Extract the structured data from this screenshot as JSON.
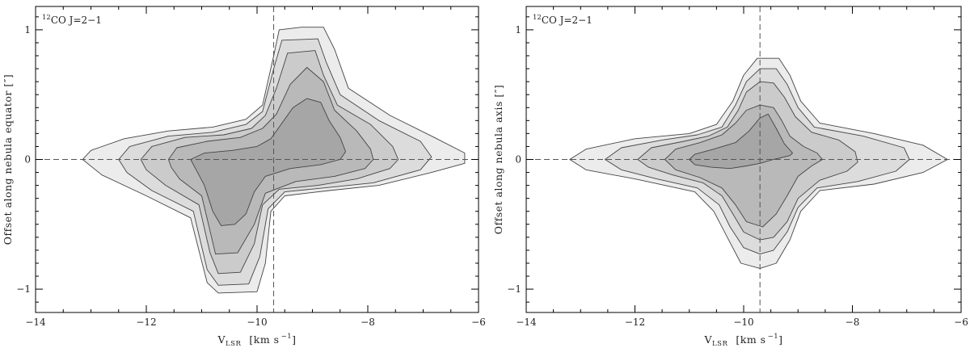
{
  "chart_data": [
    {
      "type": "contour",
      "panel_label": {
        "iso": "12",
        "text": "CO J=2−1"
      },
      "xlabel": {
        "main": "V",
        "sub": "LSR",
        "unit": "[km s",
        "exp": "−1",
        "close": "]"
      },
      "ylabel": "Offset along nebula equator [″]",
      "xlim": [
        -14,
        -6
      ],
      "ylim": [
        -1.18,
        1.18
      ],
      "xticks": [
        -14,
        -12,
        -10,
        -8,
        -6
      ],
      "yticks": [
        -1,
        0,
        1
      ],
      "xtick_labels": [
        "−14",
        "−12",
        "−10",
        "−8",
        "−6"
      ],
      "ytick_labels": [
        "−1",
        "0",
        "1"
      ],
      "ref_vline_x": -9.7,
      "ref_hline_y": 0,
      "contour_fills": [
        "#ececec",
        "#dcdcdc",
        "#cbcbcb",
        "#b9b9b9",
        "#a6a6a6"
      ],
      "contours": [
        [
          [
            -13.15,
            0.0
          ],
          [
            -13.0,
            0.07
          ],
          [
            -12.4,
            0.16
          ],
          [
            -11.6,
            0.22
          ],
          [
            -10.8,
            0.25
          ],
          [
            -10.2,
            0.31
          ],
          [
            -9.9,
            0.42
          ],
          [
            -9.7,
            0.8
          ],
          [
            -9.6,
            1.0
          ],
          [
            -9.2,
            1.02
          ],
          [
            -8.8,
            1.02
          ],
          [
            -8.6,
            0.85
          ],
          [
            -8.35,
            0.55
          ],
          [
            -7.6,
            0.34
          ],
          [
            -6.8,
            0.17
          ],
          [
            -6.25,
            0.05
          ],
          [
            -6.25,
            -0.03
          ],
          [
            -6.85,
            -0.1
          ],
          [
            -7.8,
            -0.2
          ],
          [
            -8.7,
            -0.24
          ],
          [
            -9.5,
            -0.28
          ],
          [
            -9.75,
            -0.4
          ],
          [
            -9.85,
            -0.8
          ],
          [
            -10.0,
            -1.02
          ],
          [
            -10.7,
            -1.03
          ],
          [
            -10.9,
            -0.95
          ],
          [
            -11.2,
            -0.45
          ],
          [
            -12.0,
            -0.28
          ],
          [
            -12.8,
            -0.12
          ]
        ],
        [
          [
            -12.5,
            0.0
          ],
          [
            -12.3,
            0.1
          ],
          [
            -11.6,
            0.18
          ],
          [
            -10.8,
            0.21
          ],
          [
            -10.2,
            0.27
          ],
          [
            -9.9,
            0.37
          ],
          [
            -9.7,
            0.7
          ],
          [
            -9.55,
            0.92
          ],
          [
            -8.9,
            0.93
          ],
          [
            -8.75,
            0.75
          ],
          [
            -8.5,
            0.5
          ],
          [
            -7.8,
            0.3
          ],
          [
            -7.05,
            0.14
          ],
          [
            -6.85,
            0.02
          ],
          [
            -7.05,
            -0.08
          ],
          [
            -7.9,
            -0.18
          ],
          [
            -8.8,
            -0.22
          ],
          [
            -9.5,
            -0.25
          ],
          [
            -9.8,
            -0.38
          ],
          [
            -9.95,
            -0.75
          ],
          [
            -10.15,
            -0.96
          ],
          [
            -10.7,
            -0.97
          ],
          [
            -10.9,
            -0.85
          ],
          [
            -11.15,
            -0.4
          ],
          [
            -11.9,
            -0.24
          ],
          [
            -12.35,
            -0.1
          ]
        ],
        [
          [
            -12.1,
            0.0
          ],
          [
            -11.9,
            0.1
          ],
          [
            -11.3,
            0.17
          ],
          [
            -10.6,
            0.19
          ],
          [
            -10.1,
            0.24
          ],
          [
            -9.85,
            0.34
          ],
          [
            -9.65,
            0.55
          ],
          [
            -9.45,
            0.82
          ],
          [
            -8.95,
            0.84
          ],
          [
            -8.8,
            0.65
          ],
          [
            -8.55,
            0.42
          ],
          [
            -7.95,
            0.27
          ],
          [
            -7.55,
            0.1
          ],
          [
            -7.45,
            0.0
          ],
          [
            -7.6,
            -0.07
          ],
          [
            -8.2,
            -0.15
          ],
          [
            -8.9,
            -0.2
          ],
          [
            -9.6,
            -0.23
          ],
          [
            -9.9,
            -0.35
          ],
          [
            -10.05,
            -0.65
          ],
          [
            -10.3,
            -0.87
          ],
          [
            -10.7,
            -0.88
          ],
          [
            -10.85,
            -0.72
          ],
          [
            -11.05,
            -0.35
          ],
          [
            -11.65,
            -0.2
          ],
          [
            -12.0,
            -0.08
          ]
        ],
        [
          [
            -11.6,
            0.0
          ],
          [
            -11.45,
            0.09
          ],
          [
            -10.9,
            0.14
          ],
          [
            -10.3,
            0.17
          ],
          [
            -9.9,
            0.24
          ],
          [
            -9.65,
            0.35
          ],
          [
            -9.4,
            0.58
          ],
          [
            -9.1,
            0.71
          ],
          [
            -8.8,
            0.6
          ],
          [
            -8.6,
            0.38
          ],
          [
            -8.2,
            0.22
          ],
          [
            -7.95,
            0.08
          ],
          [
            -7.9,
            0.0
          ],
          [
            -8.05,
            -0.07
          ],
          [
            -8.6,
            -0.13
          ],
          [
            -9.3,
            -0.17
          ],
          [
            -9.85,
            -0.26
          ],
          [
            -10.05,
            -0.5
          ],
          [
            -10.35,
            -0.72
          ],
          [
            -10.75,
            -0.73
          ],
          [
            -10.85,
            -0.55
          ],
          [
            -11.0,
            -0.28
          ],
          [
            -11.4,
            -0.15
          ],
          [
            -11.55,
            -0.06
          ]
        ],
        [
          [
            -11.2,
            0.0
          ],
          [
            -10.95,
            0.05
          ],
          [
            -10.45,
            0.07
          ],
          [
            -10.0,
            0.1
          ],
          [
            -9.75,
            0.16
          ],
          [
            -9.55,
            0.28
          ],
          [
            -9.35,
            0.4
          ],
          [
            -9.1,
            0.47
          ],
          [
            -8.85,
            0.44
          ],
          [
            -8.7,
            0.3
          ],
          [
            -8.5,
            0.17
          ],
          [
            -8.4,
            0.06
          ],
          [
            -8.5,
            0.0
          ],
          [
            -8.85,
            -0.04
          ],
          [
            -9.4,
            -0.07
          ],
          [
            -9.85,
            -0.13
          ],
          [
            -10.05,
            -0.25
          ],
          [
            -10.2,
            -0.42
          ],
          [
            -10.4,
            -0.5
          ],
          [
            -10.65,
            -0.51
          ],
          [
            -10.8,
            -0.4
          ],
          [
            -10.95,
            -0.2
          ],
          [
            -11.1,
            -0.08
          ]
        ]
      ]
    },
    {
      "type": "contour",
      "panel_label": {
        "iso": "12",
        "text": "CO J=2−1"
      },
      "xlabel": {
        "main": "V",
        "sub": "LSR",
        "unit": "[km s",
        "exp": "−1",
        "close": "]"
      },
      "ylabel": "Offset along nebula axis [″]",
      "xlim": [
        -14,
        -6
      ],
      "ylim": [
        -1.18,
        1.18
      ],
      "xticks": [
        -14,
        -12,
        -10,
        -8,
        -6
      ],
      "yticks": [
        -1,
        0,
        1
      ],
      "xtick_labels": [
        "−14",
        "−12",
        "−10",
        "−8",
        "−6"
      ],
      "ytick_labels": [
        "−1",
        "0",
        "1"
      ],
      "ref_vline_x": -9.7,
      "ref_hline_y": 0,
      "contour_fills": [
        "#ececec",
        "#dcdcdc",
        "#cbcbcb",
        "#b9b9b9",
        "#a6a6a6"
      ],
      "contours": [
        [
          [
            -13.2,
            0.0
          ],
          [
            -12.9,
            0.08
          ],
          [
            -12.0,
            0.16
          ],
          [
            -11.0,
            0.2
          ],
          [
            -10.5,
            0.27
          ],
          [
            -10.2,
            0.45
          ],
          [
            -10.0,
            0.65
          ],
          [
            -9.75,
            0.78
          ],
          [
            -9.35,
            0.78
          ],
          [
            -9.15,
            0.65
          ],
          [
            -8.95,
            0.45
          ],
          [
            -8.6,
            0.28
          ],
          [
            -7.6,
            0.2
          ],
          [
            -6.7,
            0.11
          ],
          [
            -6.25,
            0.0
          ],
          [
            -6.7,
            -0.1
          ],
          [
            -7.6,
            -0.19
          ],
          [
            -8.6,
            -0.24
          ],
          [
            -8.95,
            -0.4
          ],
          [
            -9.15,
            -0.62
          ],
          [
            -9.4,
            -0.8
          ],
          [
            -9.7,
            -0.84
          ],
          [
            -10.05,
            -0.8
          ],
          [
            -10.3,
            -0.6
          ],
          [
            -10.55,
            -0.4
          ],
          [
            -10.9,
            -0.25
          ],
          [
            -12.0,
            -0.15
          ],
          [
            -12.9,
            -0.08
          ]
        ],
        [
          [
            -12.55,
            0.0
          ],
          [
            -12.25,
            0.09
          ],
          [
            -11.5,
            0.15
          ],
          [
            -10.85,
            0.19
          ],
          [
            -10.4,
            0.25
          ],
          [
            -10.15,
            0.42
          ],
          [
            -9.95,
            0.6
          ],
          [
            -9.7,
            0.7
          ],
          [
            -9.4,
            0.7
          ],
          [
            -9.2,
            0.58
          ],
          [
            -9.0,
            0.4
          ],
          [
            -8.7,
            0.25
          ],
          [
            -7.8,
            0.18
          ],
          [
            -7.05,
            0.09
          ],
          [
            -6.95,
            0.0
          ],
          [
            -7.2,
            -0.09
          ],
          [
            -7.9,
            -0.17
          ],
          [
            -8.65,
            -0.22
          ],
          [
            -9.0,
            -0.37
          ],
          [
            -9.2,
            -0.56
          ],
          [
            -9.45,
            -0.7
          ],
          [
            -9.7,
            -0.73
          ],
          [
            -10.0,
            -0.68
          ],
          [
            -10.25,
            -0.52
          ],
          [
            -10.45,
            -0.35
          ],
          [
            -10.85,
            -0.22
          ],
          [
            -11.6,
            -0.15
          ],
          [
            -12.25,
            -0.08
          ]
        ],
        [
          [
            -11.95,
            0.0
          ],
          [
            -11.7,
            0.09
          ],
          [
            -11.1,
            0.14
          ],
          [
            -10.65,
            0.18
          ],
          [
            -10.3,
            0.25
          ],
          [
            -10.1,
            0.38
          ],
          [
            -9.95,
            0.52
          ],
          [
            -9.7,
            0.6
          ],
          [
            -9.45,
            0.59
          ],
          [
            -9.25,
            0.48
          ],
          [
            -9.05,
            0.33
          ],
          [
            -8.75,
            0.21
          ],
          [
            -8.25,
            0.15
          ],
          [
            -7.95,
            0.06
          ],
          [
            -7.9,
            -0.02
          ],
          [
            -8.1,
            -0.09
          ],
          [
            -8.6,
            -0.16
          ],
          [
            -9.0,
            -0.3
          ],
          [
            -9.2,
            -0.48
          ],
          [
            -9.45,
            -0.6
          ],
          [
            -9.7,
            -0.62
          ],
          [
            -10.0,
            -0.56
          ],
          [
            -10.2,
            -0.42
          ],
          [
            -10.4,
            -0.28
          ],
          [
            -10.75,
            -0.18
          ],
          [
            -11.3,
            -0.12
          ],
          [
            -11.75,
            -0.06
          ]
        ],
        [
          [
            -11.45,
            0.0
          ],
          [
            -11.25,
            0.08
          ],
          [
            -10.8,
            0.13
          ],
          [
            -10.4,
            0.19
          ],
          [
            -10.15,
            0.28
          ],
          [
            -9.95,
            0.38
          ],
          [
            -9.7,
            0.42
          ],
          [
            -9.45,
            0.4
          ],
          [
            -9.3,
            0.3
          ],
          [
            -9.15,
            0.18
          ],
          [
            -8.9,
            0.1
          ],
          [
            -8.65,
            0.05
          ],
          [
            -8.55,
            0.0
          ],
          [
            -8.75,
            -0.05
          ],
          [
            -9.0,
            -0.13
          ],
          [
            -9.2,
            -0.28
          ],
          [
            -9.4,
            -0.42
          ],
          [
            -9.65,
            -0.52
          ],
          [
            -9.95,
            -0.48
          ],
          [
            -10.15,
            -0.35
          ],
          [
            -10.4,
            -0.22
          ],
          [
            -10.8,
            -0.14
          ],
          [
            -11.25,
            -0.08
          ]
        ],
        [
          [
            -11.0,
            0.0
          ],
          [
            -10.9,
            0.04
          ],
          [
            -10.55,
            0.08
          ],
          [
            -10.15,
            0.13
          ],
          [
            -9.9,
            0.22
          ],
          [
            -9.7,
            0.32
          ],
          [
            -9.55,
            0.35
          ],
          [
            -9.4,
            0.24
          ],
          [
            -9.25,
            0.12
          ],
          [
            -9.1,
            0.05
          ],
          [
            -9.15,
            0.03
          ],
          [
            -9.45,
            0.0
          ],
          [
            -9.7,
            -0.03
          ],
          [
            -9.95,
            -0.05
          ],
          [
            -10.25,
            -0.07
          ],
          [
            -10.6,
            -0.06
          ],
          [
            -10.9,
            -0.04
          ]
        ]
      ]
    }
  ]
}
